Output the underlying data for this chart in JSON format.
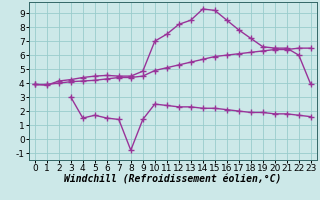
{
  "xlabel": "Windchill (Refroidissement éolien,°C)",
  "bg_color": "#cce8e8",
  "grid_color": "#99cccc",
  "line_color": "#993399",
  "spine_color": "#336666",
  "x_top": [
    0,
    1,
    2,
    3,
    4,
    5,
    6,
    7,
    8,
    9,
    10,
    11,
    12,
    13,
    14,
    15,
    16,
    17,
    18,
    19,
    20,
    21,
    22,
    23
  ],
  "y_top": [
    3.9,
    3.85,
    4.15,
    4.25,
    4.4,
    4.5,
    4.55,
    4.5,
    4.5,
    4.85,
    7.0,
    7.5,
    8.2,
    8.5,
    9.3,
    9.2,
    8.5,
    7.8,
    7.2,
    6.6,
    6.5,
    6.5,
    6.0,
    3.9
  ],
  "x_mid": [
    0,
    1,
    2,
    3,
    4,
    5,
    6,
    7,
    8,
    9,
    10,
    11,
    12,
    13,
    14,
    15,
    16,
    17,
    18,
    19,
    20,
    21,
    22,
    23
  ],
  "y_mid": [
    3.9,
    3.9,
    4.0,
    4.1,
    4.15,
    4.2,
    4.3,
    4.4,
    4.4,
    4.5,
    4.9,
    5.1,
    5.3,
    5.5,
    5.7,
    5.9,
    6.0,
    6.1,
    6.2,
    6.3,
    6.4,
    6.4,
    6.5,
    6.5
  ],
  "x_bot": [
    3,
    4,
    5,
    6,
    7,
    8,
    9,
    10,
    11,
    12,
    13,
    14,
    15,
    16,
    17,
    18,
    19,
    20,
    21,
    22,
    23
  ],
  "y_bot": [
    3.0,
    1.5,
    1.7,
    1.5,
    1.4,
    -0.8,
    1.4,
    2.5,
    2.4,
    2.3,
    2.3,
    2.2,
    2.2,
    2.1,
    2.0,
    1.9,
    1.9,
    1.8,
    1.8,
    1.7,
    1.6
  ],
  "ylim": [
    -1.5,
    9.8
  ],
  "xlim": [
    -0.5,
    23.5
  ],
  "yticks": [
    -1,
    0,
    1,
    2,
    3,
    4,
    5,
    6,
    7,
    8,
    9
  ],
  "xticks": [
    0,
    1,
    2,
    3,
    4,
    5,
    6,
    7,
    8,
    9,
    10,
    11,
    12,
    13,
    14,
    15,
    16,
    17,
    18,
    19,
    20,
    21,
    22,
    23
  ],
  "marker": "+",
  "markersize": 4,
  "markeredgewidth": 1.0,
  "linewidth": 1.0,
  "tick_font_size": 6.5,
  "xlabel_font_size": 7.0
}
